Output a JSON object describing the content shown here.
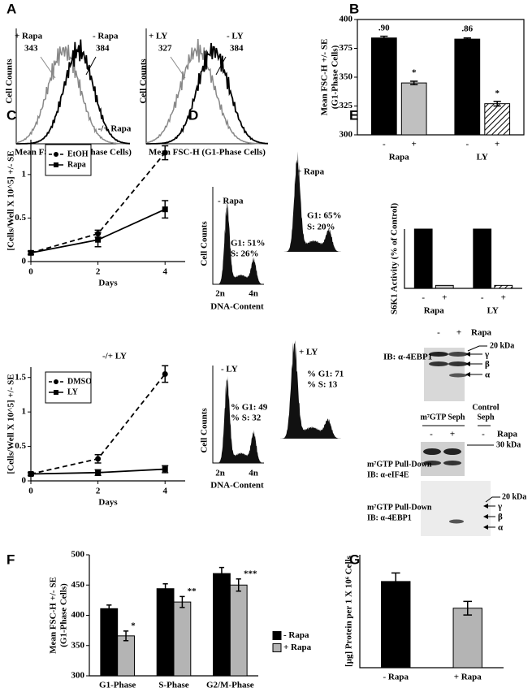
{
  "figure": {
    "panel_labels": [
      "A",
      "B",
      "C",
      "D",
      "E",
      "F",
      "G"
    ],
    "a": [
      {
        "plus": "+ Rapa",
        "plus_value": 343,
        "minus": "- Rapa",
        "minus_value": 384,
        "ylabel": "Cell Counts",
        "xlabel": "Mean FSC-H (G1-Phase Cells)"
      },
      {
        "plus": "+ LY",
        "plus_value": 327,
        "minus": "- LY",
        "minus_value": 384,
        "ylabel": "Cell Counts",
        "xlabel": "Mean FSC-H (G1-Phase Cells)"
      }
    ],
    "d": [
      {
        "minus": {
          "label": "- Rapa",
          "g1": "G1: 51%",
          "s": "S: 26%"
        },
        "plus": {
          "label": "+ Rapa",
          "g1": "G1: 65%",
          "s": "S: 20%"
        },
        "ylabel": "Cell Counts",
        "xticks": [
          "2n",
          "4n"
        ],
        "xlabel": "DNA-Content"
      },
      {
        "minus": {
          "label": "- LY",
          "g1": "% G1: 49",
          "s": "% S: 32"
        },
        "plus": {
          "label": "+ LY",
          "g1": "% G1: 71",
          "s": "% S: 13"
        },
        "ylabel": "Cell Counts",
        "xticks": [
          "2n",
          "4n"
        ],
        "xlabel": "DNA-Content"
      }
    ],
    "blots": [
      {
        "lanes": [
          "-",
          "+"
        ],
        "treatment": "Rapa",
        "marker": "20 kDa",
        "isoforms": [
          "γ",
          "β",
          "α"
        ],
        "probe": [
          "IB: α-4EBP1"
        ]
      },
      {
        "seph": "m⁷GTP Seph",
        "control": [
          "Control",
          "Seph"
        ],
        "lanes": [
          "-",
          "+",
          "-"
        ],
        "treatment": "Rapa",
        "marker": "30 kDa",
        "probe": [
          "m⁷GTP Pull-Down",
          "IB: α-eIF4E"
        ]
      },
      {
        "marker": "20 kDa",
        "isoforms": [
          "γ",
          "β",
          "α"
        ],
        "probe": [
          "m⁷GTP Pull-Down",
          "IB: α-4EBP1"
        ]
      }
    ]
  },
  "chart_data": [
    {
      "type": "bar",
      "ylabel": [
        "Mean FSC-H +/- SE",
        "(G1-Phase Cells)"
      ],
      "categories": [
        "-",
        "+",
        "-",
        "+"
      ],
      "groups": [
        "Rapa",
        "LY"
      ],
      "values": [
        384,
        345,
        383,
        327
      ],
      "errors": [
        1.5,
        1.5,
        1,
        2
      ],
      "colors": [
        "#000000",
        "#c0c0c0",
        "#000000",
        "#ffffff"
      ],
      "hatch": [
        false,
        false,
        false,
        true
      ],
      "annotations": [
        ".90",
        "*",
        ".86",
        "*"
      ],
      "ylim": [
        300,
        400
      ],
      "yticks": [
        300,
        325,
        350,
        375,
        400
      ],
      "frame": true
    },
    {
      "type": "line",
      "title": "-/+ Rapa",
      "xlabel": "Days",
      "ylabel": "[Cells/Well X 10^5] +/- SE",
      "x": [
        0,
        2,
        4
      ],
      "xlim": [
        0,
        4.6
      ],
      "xticks": [
        0,
        2,
        4
      ],
      "ylim": [
        0,
        1.4
      ],
      "yticks": [
        0,
        0.5,
        1
      ],
      "legend": "upper left",
      "series": [
        {
          "name": "EtOH",
          "color": "#000000",
          "dashed": true,
          "marker": "circle",
          "values": [
            0.1,
            0.32,
            1.25
          ],
          "errors": [
            0.02,
            0.04,
            0.08
          ]
        },
        {
          "name": "Rapa",
          "color": "#000000",
          "dashed": false,
          "marker": "square",
          "values": [
            0.1,
            0.25,
            0.6
          ],
          "errors": [
            0.02,
            0.08,
            0.1
          ]
        }
      ]
    },
    {
      "type": "line",
      "title": "-/+ LY",
      "xlabel": "Days",
      "ylabel": "[Cells/Well X 10^5] +/- SE",
      "x": [
        0,
        2,
        4
      ],
      "xlim": [
        0,
        4.6
      ],
      "xticks": [
        0,
        2,
        4
      ],
      "ylim": [
        0,
        1.65
      ],
      "yticks": [
        0,
        0.5,
        1,
        1.5
      ],
      "legend": "upper left",
      "series": [
        {
          "name": "DMSO",
          "color": "#000000",
          "dashed": true,
          "marker": "circle",
          "values": [
            0.1,
            0.32,
            1.55
          ],
          "errors": [
            0.02,
            0.06,
            0.12
          ]
        },
        {
          "name": "LY",
          "color": "#000000",
          "dashed": false,
          "marker": "square",
          "values": [
            0.1,
            0.12,
            0.17
          ],
          "errors": [
            0.02,
            0.04,
            0.05
          ]
        }
      ]
    },
    {
      "type": "bar",
      "ylabel": "S6K1 Activity (% of Control)",
      "categories": [
        "-",
        "+",
        "-",
        "+"
      ],
      "groups": [
        "Rapa",
        "LY"
      ],
      "values": [
        100,
        5,
        100,
        5
      ],
      "colors": [
        "#000000",
        "#c0c0c0",
        "#000000",
        "#ffffff"
      ],
      "hatch": [
        false,
        false,
        false,
        true
      ],
      "ylim": [
        0,
        100
      ]
    },
    {
      "type": "bar",
      "ylabel": [
        "Mean FSC-H +/- SE",
        "(G1-Phase Cells)"
      ],
      "categories": [
        "G1-Phase",
        "S-Phase",
        "G2/M-Phase"
      ],
      "series": [
        {
          "name": "- Rapa",
          "color": "#000000",
          "values": [
            411,
            444,
            469
          ],
          "errors": [
            6,
            8,
            10
          ]
        },
        {
          "name": "+ Rapa",
          "color": "#b4b4b4",
          "values": [
            366,
            422,
            450
          ],
          "errors": [
            8,
            9,
            10
          ]
        }
      ],
      "annotations": [
        "*",
        "**",
        "***"
      ],
      "ylim": [
        300,
        500
      ],
      "yticks": [
        300,
        350,
        400,
        450,
        500
      ],
      "legend": "right"
    },
    {
      "type": "bar",
      "ylabel": "[µg] Protein per 1 X 10⁶ Cells",
      "categories": [
        "- Rapa",
        "+ Rapa"
      ],
      "values": [
        355,
        245
      ],
      "errors": [
        35,
        28
      ],
      "colors": [
        "#000000",
        "#b4b4b4"
      ],
      "ylim": [
        0,
        465
      ]
    }
  ]
}
